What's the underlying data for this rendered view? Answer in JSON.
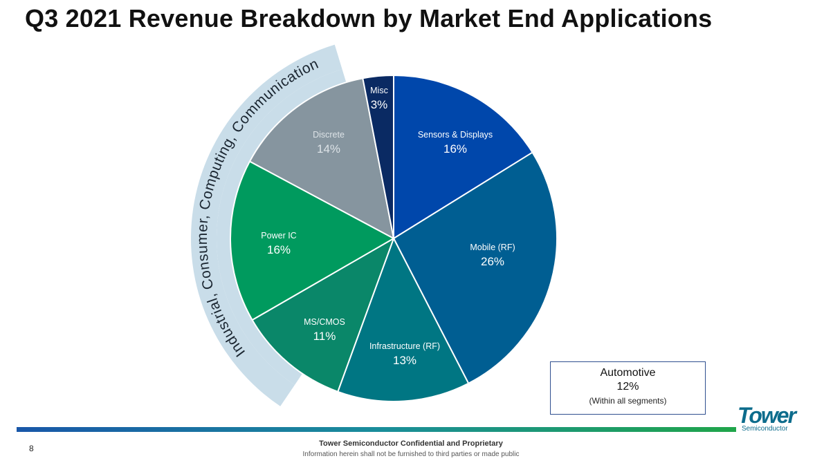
{
  "slide": {
    "title": "Q3 2021 Revenue Breakdown by Market End Applications",
    "page_number": "8",
    "footer_title": "Tower Semiconductor Confidential and Proprietary",
    "footer_note": "Information herein shall not be furnished to third parties or made public"
  },
  "logo": {
    "word": "Tower",
    "sub": "Semiconductor"
  },
  "automotive": {
    "name": "Automotive",
    "pct": "12%",
    "note": "(Within all segments)"
  },
  "arc_label": "Industrial, Consumer, Computing, Communication",
  "chart_data": {
    "type": "pie",
    "title": "Q3 2021 Revenue Breakdown by Market End Applications",
    "unit": "%",
    "slices": [
      {
        "label": "Sensors & Displays",
        "value": 16,
        "pct_label": "16%",
        "color": "#0047AB"
      },
      {
        "label": "Mobile (RF)",
        "value": 26,
        "pct_label": "26%",
        "color": "#005E92"
      },
      {
        "label": "Infrastructure (RF)",
        "value": 13,
        "pct_label": "13%",
        "color": "#007683"
      },
      {
        "label": "MS/CMOS",
        "value": 11,
        "pct_label": "11%",
        "color": "#0A8769"
      },
      {
        "label": "Power IC",
        "value": 16,
        "pct_label": "16%",
        "color": "#009A5E"
      },
      {
        "label": "Discrete",
        "value": 14,
        "pct_label": "14%",
        "color": "#86959F"
      },
      {
        "label": "Misc",
        "value": 3,
        "pct_label": "3%",
        "color": "#0A2A63"
      }
    ],
    "callout": {
      "label": "Automotive",
      "value": 12,
      "pct_label": "12%",
      "note": "(Within all segments)"
    }
  }
}
